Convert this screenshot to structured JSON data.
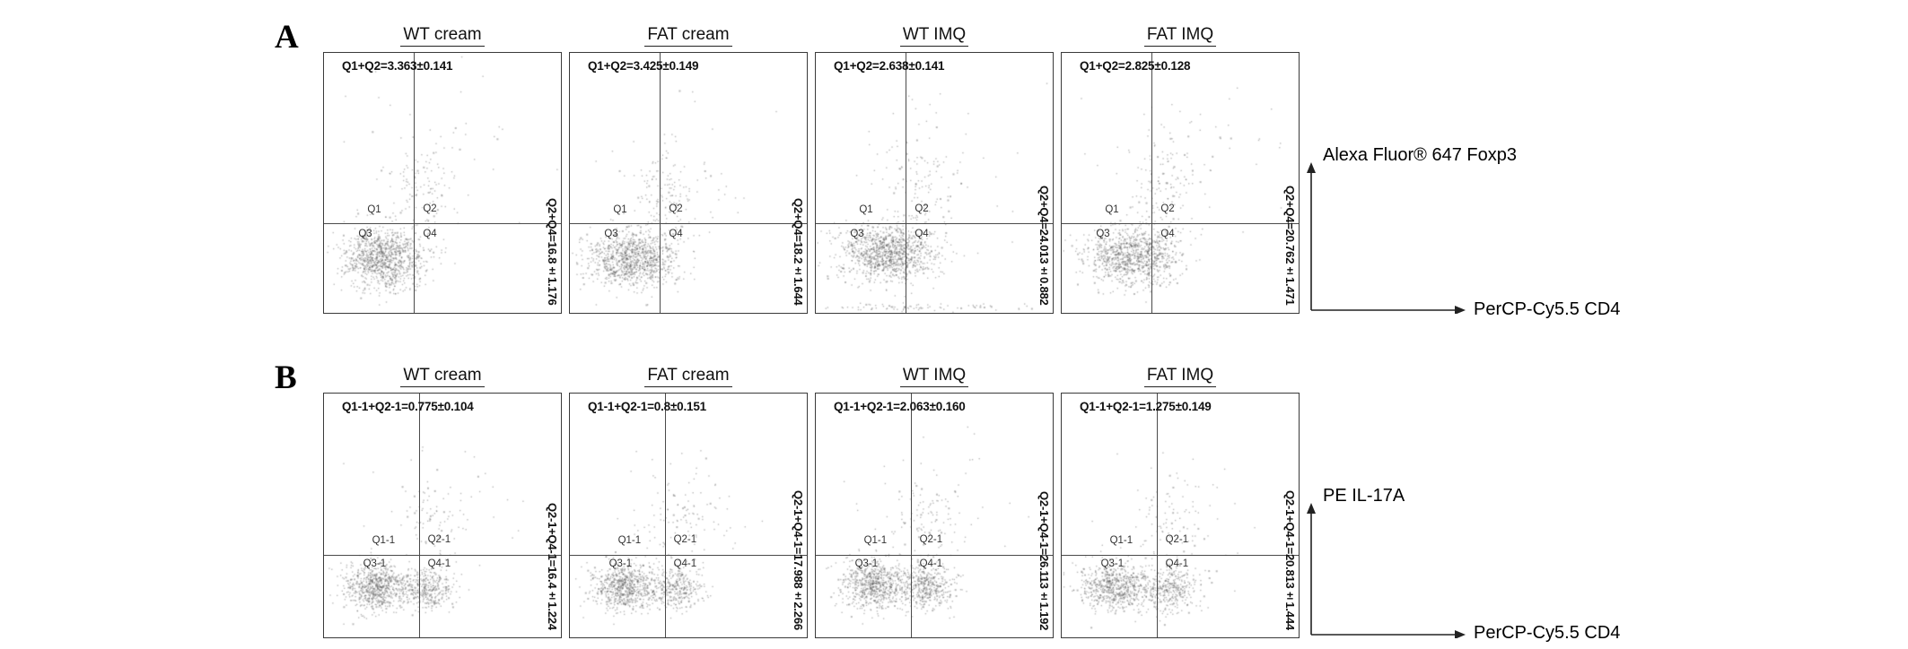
{
  "figure": {
    "background": "#ffffff",
    "dot_color": "#4b4b4b",
    "line_color": "#4a4a4a"
  },
  "chart_data": [
    {
      "type": "scatter",
      "row_label": "A",
      "y_axis_label": "Alexa Fluor® 647 Foxp3",
      "x_axis_label": "PerCP-Cy5.5 CD4",
      "quadrant_split": {
        "x_frac": 0.38,
        "y_frac": 0.655
      },
      "panels": [
        {
          "title": "WT cream",
          "gate_stat": "Q1+Q2=3.363±0.141",
          "side_stat": "Q2+Q4=16.8±1.176",
          "quadrant_labels": {
            "q1": "Q1",
            "q2": "Q2",
            "q3": "Q3",
            "q4": "Q4"
          },
          "clusters": [
            [
              0.25,
              0.79,
              0.085,
              0.055,
              1050
            ],
            [
              0.4,
              0.53,
              0.07,
              0.09,
              110
            ],
            [
              0.5,
              0.42,
              0.2,
              0.16,
              45
            ]
          ]
        },
        {
          "title": "FAT cream",
          "gate_stat": "Q1+Q2=3.425±0.149",
          "side_stat": "Q2+Q4=18.2±1.644",
          "quadrant_labels": {
            "q1": "Q1",
            "q2": "Q2",
            "q3": "Q3",
            "q4": "Q4"
          },
          "clusters": [
            [
              0.26,
              0.79,
              0.09,
              0.055,
              1000
            ],
            [
              0.41,
              0.54,
              0.07,
              0.09,
              120
            ],
            [
              0.5,
              0.42,
              0.2,
              0.16,
              45
            ]
          ]
        },
        {
          "title": "WT IMQ",
          "gate_stat": "Q1+Q2=2.638±0.141",
          "side_stat": "Q2+Q4=24.013±0.882",
          "quadrant_labels": {
            "q1": "Q1",
            "q2": "Q2",
            "q3": "Q3",
            "q4": "Q4"
          },
          "clusters": [
            [
              0.3,
              0.77,
              0.1,
              0.055,
              1100
            ],
            [
              0.43,
              0.52,
              0.08,
              0.09,
              100
            ],
            [
              0.5,
              0.42,
              0.2,
              0.16,
              45
            ],
            [
              0.5,
              0.975,
              0.28,
              0.008,
              90
            ]
          ]
        },
        {
          "title": "FAT IMQ",
          "gate_stat": "Q1+Q2=2.825±0.128",
          "side_stat": "Q2+Q4=20.762±1.471",
          "quadrant_labels": {
            "q1": "Q1",
            "q2": "Q2",
            "q3": "Q3",
            "q4": "Q4"
          },
          "clusters": [
            [
              0.3,
              0.78,
              0.1,
              0.055,
              1000
            ],
            [
              0.43,
              0.5,
              0.08,
              0.1,
              120
            ],
            [
              0.55,
              0.4,
              0.2,
              0.15,
              50
            ]
          ]
        }
      ]
    },
    {
      "type": "scatter",
      "row_label": "B",
      "y_axis_label": "PE IL-17A",
      "x_axis_label": "PerCP-Cy5.5 CD4",
      "quadrant_split": {
        "x_frac": 0.4,
        "y_frac": 0.66
      },
      "panels": [
        {
          "title": "WT cream",
          "gate_stat": "Q1-1+Q2-1=0.775±0.104",
          "side_stat": "Q2-1+Q4-1=16.4±1.224",
          "quadrant_labels": {
            "q1": "Q1-1",
            "q2": "Q2-1",
            "q3": "Q3-1",
            "q4": "Q4-1"
          },
          "clusters": [
            [
              0.22,
              0.79,
              0.07,
              0.05,
              700
            ],
            [
              0.44,
              0.8,
              0.06,
              0.045,
              350
            ],
            [
              0.45,
              0.52,
              0.07,
              0.09,
              70
            ],
            [
              0.5,
              0.45,
              0.2,
              0.15,
              35
            ]
          ]
        },
        {
          "title": "FAT cream",
          "gate_stat": "Q1-1+Q2-1=0.8±0.151",
          "side_stat": "Q2-1+Q4-1=17.988±2.266",
          "quadrant_labels": {
            "q1": "Q1-1",
            "q2": "Q2-1",
            "q3": "Q3-1",
            "q4": "Q4-1"
          },
          "clusters": [
            [
              0.23,
              0.79,
              0.07,
              0.05,
              700
            ],
            [
              0.45,
              0.8,
              0.06,
              0.045,
              330
            ],
            [
              0.46,
              0.5,
              0.07,
              0.09,
              80
            ],
            [
              0.5,
              0.45,
              0.2,
              0.15,
              35
            ]
          ]
        },
        {
          "title": "WT IMQ",
          "gate_stat": "Q1-1+Q2-1=2.063±0.160",
          "side_stat": "Q2-1+Q4-1=26.113±1.192",
          "quadrant_labels": {
            "q1": "Q1-1",
            "q2": "Q2-1",
            "q3": "Q3-1",
            "q4": "Q4-1"
          },
          "clusters": [
            [
              0.24,
              0.78,
              0.07,
              0.05,
              650
            ],
            [
              0.46,
              0.79,
              0.07,
              0.05,
              450
            ],
            [
              0.46,
              0.5,
              0.08,
              0.09,
              90
            ],
            [
              0.5,
              0.45,
              0.2,
              0.15,
              40
            ]
          ]
        },
        {
          "title": "FAT IMQ",
          "gate_stat": "Q1-1+Q2-1=1.275±0.149",
          "side_stat": "Q2-1+Q4-1=20.813±1.444",
          "quadrant_labels": {
            "q1": "Q1-1",
            "q2": "Q2-1",
            "q3": "Q3-1",
            "q4": "Q4-1"
          },
          "clusters": [
            [
              0.22,
              0.79,
              0.07,
              0.05,
              650
            ],
            [
              0.45,
              0.8,
              0.07,
              0.05,
              380
            ],
            [
              0.46,
              0.52,
              0.07,
              0.09,
              70
            ],
            [
              0.5,
              0.45,
              0.2,
              0.15,
              35
            ]
          ]
        }
      ]
    }
  ]
}
